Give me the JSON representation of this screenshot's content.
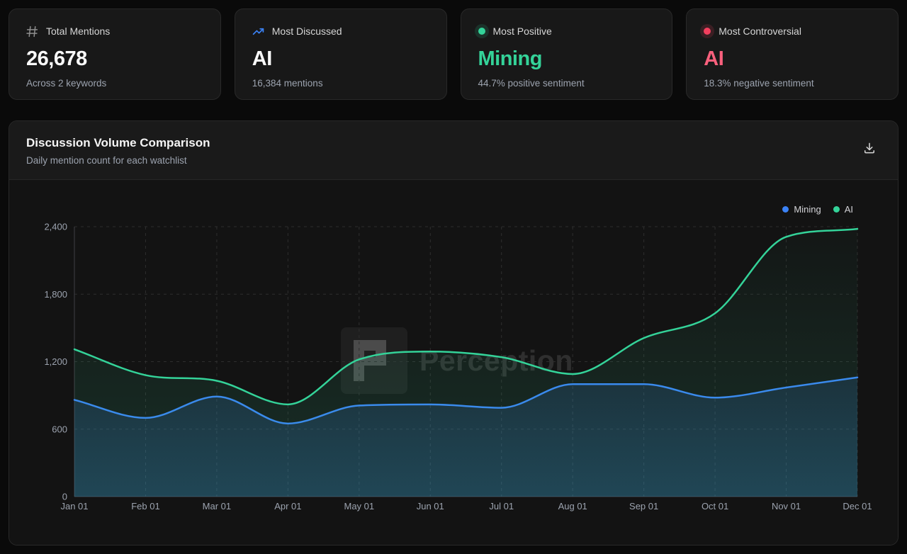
{
  "colors": {
    "blue": "#3b82f6",
    "green": "#34d399",
    "red": "#f43f5e",
    "red_text": "#f8607c",
    "white": "#fafafa",
    "muted": "#9ca3af"
  },
  "stat_cards": [
    {
      "icon": "hash-icon",
      "label": "Total Mentions",
      "value": "26,678",
      "sub": "Across 2 keywords",
      "value_color": "#fafafa"
    },
    {
      "icon": "trending-up-icon",
      "label": "Most Discussed",
      "value": "AI",
      "sub": "16,384 mentions",
      "value_color": "#fafafa"
    },
    {
      "icon": "green-dot-icon",
      "label": "Most Positive",
      "value": "Mining",
      "sub": "44.7% positive sentiment",
      "value_color": "#34d399"
    },
    {
      "icon": "red-dot-icon",
      "label": "Most Controversial",
      "value": "AI",
      "sub": "18.3% negative sentiment",
      "value_color": "#f8607c"
    }
  ],
  "chart_card": {
    "title": "Discussion Volume Comparison",
    "subtitle": "Daily mention count for each watchlist",
    "download_icon": "download-icon",
    "watermark": "Perception"
  },
  "chart_data": {
    "type": "area",
    "title": "Discussion Volume Comparison",
    "xlabel": "",
    "ylabel": "",
    "x": [
      "Jan 01",
      "Feb 01",
      "Mar 01",
      "Apr 01",
      "May 01",
      "Jun 01",
      "Jul 01",
      "Aug 01",
      "Sep 01",
      "Oct 01",
      "Nov 01",
      "Dec 01"
    ],
    "series": [
      {
        "name": "Mining",
        "color": "#3b82f6",
        "values": [
          860,
          700,
          890,
          650,
          810,
          820,
          790,
          1000,
          1000,
          880,
          970,
          1060
        ]
      },
      {
        "name": "AI",
        "color": "#34d399",
        "values": [
          1310,
          1080,
          1030,
          820,
          1220,
          1290,
          1240,
          1090,
          1410,
          1630,
          2310,
          2380
        ]
      }
    ],
    "ylim": [
      0,
      2400
    ],
    "yticks": [
      0,
      600,
      1200,
      1800,
      2400
    ],
    "ytick_labels": [
      "0",
      "600",
      "1,200",
      "1,800",
      "2,400"
    ],
    "grid": "dashed",
    "legend_position": "top-right"
  }
}
